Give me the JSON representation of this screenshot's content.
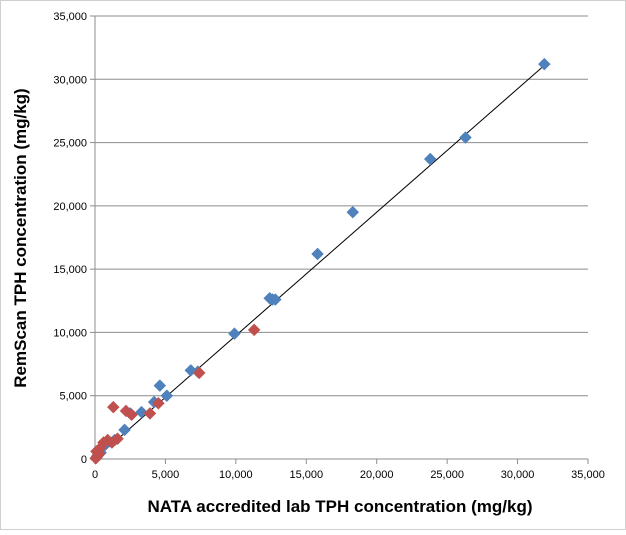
{
  "chart_data": {
    "type": "scatter",
    "title": "",
    "xlabel": "NATA accredited lab TPH concentration (mg/kg)",
    "ylabel": "RemScan TPH concentration (mg/kg)",
    "xlim": [
      0,
      35000
    ],
    "ylim": [
      0,
      35000
    ],
    "x_ticks": [
      "0",
      "5,000",
      "10,000",
      "15,000",
      "20,000",
      "25,000",
      "30,000",
      "35,000"
    ],
    "y_ticks": [
      "0",
      "5,000",
      "10,000",
      "15,000",
      "20,000",
      "25,000",
      "30,000",
      "35,000"
    ],
    "grid": "horizontal",
    "legend": "none",
    "marker": "diamond",
    "series": [
      {
        "color": "#4F81BD",
        "points": [
          [
            31900,
            31200
          ],
          [
            26300,
            25400
          ],
          [
            23800,
            23700
          ],
          [
            18300,
            19500
          ],
          [
            15800,
            16200
          ],
          [
            12600,
            12600
          ],
          [
            12400,
            12700
          ],
          [
            12800,
            12600
          ],
          [
            9900,
            9900
          ],
          [
            6800,
            7000
          ],
          [
            7300,
            6900
          ],
          [
            4600,
            5800
          ],
          [
            5100,
            5000
          ],
          [
            3300,
            3700
          ],
          [
            4200,
            4500
          ],
          [
            2500,
            3600
          ],
          [
            2100,
            2300
          ],
          [
            1400,
            1500
          ],
          [
            700,
            1100
          ],
          [
            500,
            900
          ],
          [
            400,
            500
          ],
          [
            200,
            300
          ],
          [
            100,
            100
          ]
        ]
      },
      {
        "color": "#C0504D",
        "points": [
          [
            11300,
            10200
          ],
          [
            7400,
            6800
          ],
          [
            4500,
            4400
          ],
          [
            3900,
            3600
          ],
          [
            2200,
            3800
          ],
          [
            2600,
            3500
          ],
          [
            1600,
            1600
          ],
          [
            1200,
            1300
          ],
          [
            900,
            1500
          ],
          [
            600,
            1300
          ],
          [
            400,
            900
          ],
          [
            300,
            400
          ],
          [
            150,
            200
          ],
          [
            100,
            600
          ],
          [
            50,
            50
          ],
          [
            1300,
            4100
          ]
        ]
      }
    ],
    "trendline": {
      "color": "#000000",
      "from": [
        0,
        0
      ],
      "to": [
        32000,
        31200
      ]
    }
  }
}
